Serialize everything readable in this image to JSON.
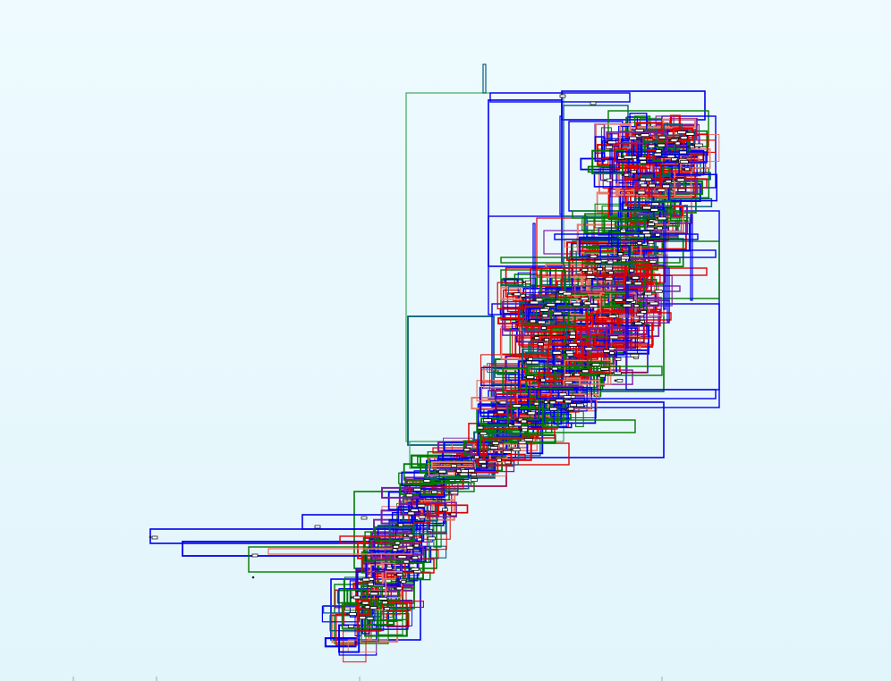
{
  "canvas": {
    "background_top": "#eefaff",
    "background_bottom": "#e2f5fb"
  },
  "diagram": {
    "kind": "nested-rectangle layout graph (routed connector boxes)",
    "palette": {
      "blue": "#0000ee",
      "green": "#007a00",
      "red": "#e00000",
      "purple": "#7a1fa0",
      "teal": "#0a5d7a",
      "salmon": "#e87a6a",
      "sea_green": "#3aa860",
      "node_fill": "#ffffff",
      "node_stroke": "#000000"
    },
    "stroke_colors_in_use": [
      "blue",
      "green",
      "red",
      "purple",
      "teal",
      "salmon",
      "sea_green"
    ]
  }
}
